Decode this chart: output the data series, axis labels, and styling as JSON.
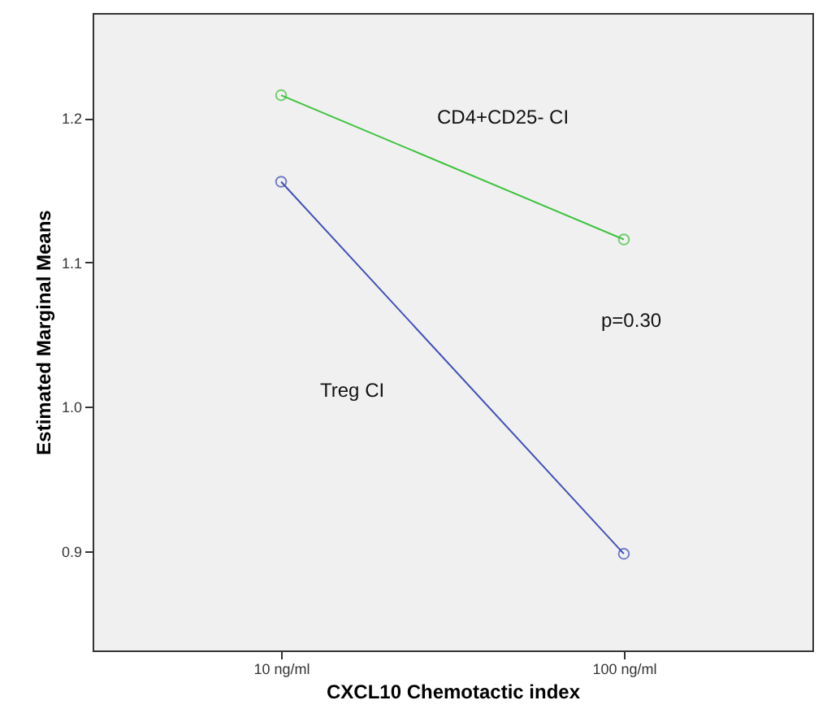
{
  "chart_data": {
    "type": "line",
    "xlabel": "CXCL10 Chemotactic index",
    "ylabel": "Estimated Marginal Means",
    "categories": [
      "10 ng/ml",
      "100 ng/ml"
    ],
    "series": [
      {
        "name": "CD4+CD25- CI",
        "color": "#3cc23c",
        "values": [
          1.216,
          1.116
        ]
      },
      {
        "name": "Treg CI",
        "color": "#3f4fb8",
        "values": [
          1.156,
          0.898
        ]
      }
    ],
    "ylim": [
      0.831,
      1.273
    ],
    "yticks": [
      0.9,
      {
        "value": 1.0,
        "label": "1.0"
      },
      1.1,
      1.2
    ],
    "annotations": [
      "p=0.30"
    ],
    "marker": "circle",
    "line_style": "solid",
    "grid": false,
    "legend": false
  }
}
